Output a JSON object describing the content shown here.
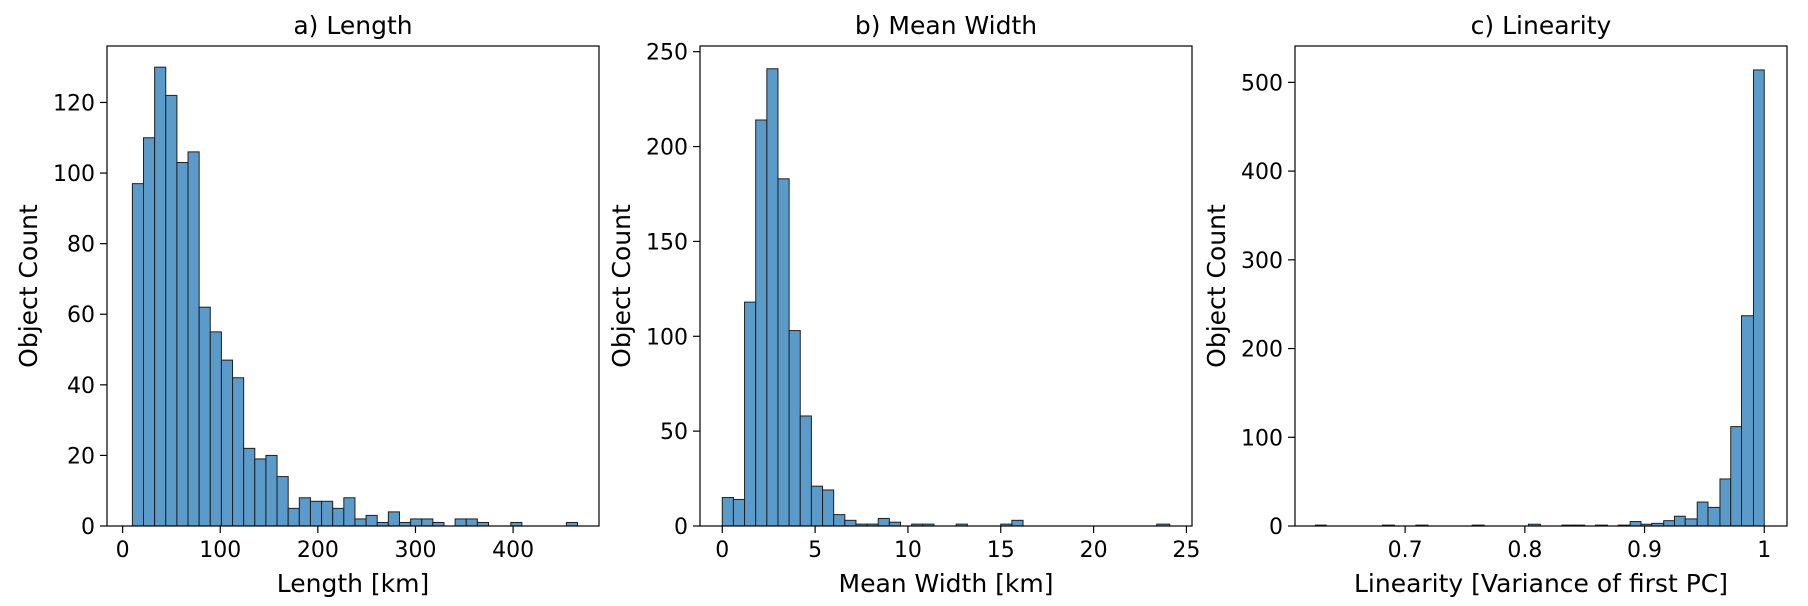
{
  "style": {
    "bar_color": "#5b9bc9",
    "edge_color": "#1f1f1f"
  },
  "chart_data": [
    {
      "type": "bar",
      "title": "a) Length",
      "xlabel": "Length [km]",
      "ylabel": "Object Count",
      "xlim": [
        -16,
        488
      ],
      "ylim": [
        0,
        136
      ],
      "xticks": [
        0,
        100,
        200,
        300,
        400
      ],
      "yticks": [
        0,
        20,
        40,
        60,
        80,
        100,
        120
      ],
      "bins": [
        [
          10,
          21.4,
          97
        ],
        [
          21.4,
          32.8,
          110
        ],
        [
          32.8,
          44.2,
          130
        ],
        [
          44.2,
          55.6,
          122
        ],
        [
          55.6,
          67,
          103
        ],
        [
          67,
          78.4,
          106
        ],
        [
          78.4,
          89.8,
          62
        ],
        [
          89.8,
          101.2,
          55
        ],
        [
          101.2,
          112.6,
          47
        ],
        [
          112.6,
          124,
          42
        ],
        [
          124,
          135.4,
          22
        ],
        [
          135.4,
          146.8,
          19
        ],
        [
          146.8,
          158.2,
          20
        ],
        [
          158.2,
          169.6,
          14
        ],
        [
          169.6,
          181,
          5
        ],
        [
          181,
          192.4,
          8
        ],
        [
          192.4,
          203.8,
          7
        ],
        [
          203.8,
          215.2,
          7
        ],
        [
          215.2,
          226.6,
          5
        ],
        [
          226.6,
          238,
          8
        ],
        [
          238,
          249.4,
          2
        ],
        [
          249.4,
          260.8,
          3
        ],
        [
          260.8,
          272.2,
          1
        ],
        [
          272.2,
          283.6,
          4
        ],
        [
          283.6,
          295,
          1
        ],
        [
          295,
          306.4,
          2
        ],
        [
          306.4,
          317.8,
          2
        ],
        [
          317.8,
          329.2,
          1
        ],
        [
          329.2,
          340.6,
          0
        ],
        [
          340.6,
          352,
          2
        ],
        [
          352,
          363.4,
          2
        ],
        [
          363.4,
          374.8,
          1
        ],
        [
          374.8,
          386.2,
          0
        ],
        [
          386.2,
          397.6,
          0
        ],
        [
          397.6,
          409,
          1
        ],
        [
          409,
          420.4,
          0
        ],
        [
          420.4,
          431.8,
          0
        ],
        [
          431.8,
          443.2,
          0
        ],
        [
          443.2,
          454.6,
          0
        ],
        [
          454.6,
          466,
          1
        ]
      ]
    },
    {
      "type": "bar",
      "title": "b) Mean Width",
      "xlabel": "Mean Width [km]",
      "ylabel": "Object Count",
      "xlim": [
        -1.2,
        25.3
      ],
      "ylim": [
        0,
        253
      ],
      "xticks": [
        0,
        5,
        10,
        15,
        20,
        25
      ],
      "yticks": [
        0,
        50,
        100,
        150,
        200,
        250
      ],
      "bins": [
        [
          0,
          0.6,
          15
        ],
        [
          0.6,
          1.2,
          14
        ],
        [
          1.2,
          1.8,
          118
        ],
        [
          1.8,
          2.4,
          214
        ],
        [
          2.4,
          3.0,
          241
        ],
        [
          3.0,
          3.6,
          183
        ],
        [
          3.6,
          4.2,
          103
        ],
        [
          4.2,
          4.8,
          58
        ],
        [
          4.8,
          5.4,
          21
        ],
        [
          5.4,
          6.0,
          19
        ],
        [
          6.0,
          6.6,
          6
        ],
        [
          6.6,
          7.2,
          3
        ],
        [
          7.2,
          7.8,
          1
        ],
        [
          7.8,
          8.4,
          1
        ],
        [
          8.4,
          9.0,
          4
        ],
        [
          9.0,
          9.6,
          2
        ],
        [
          9.6,
          10.2,
          0
        ],
        [
          10.2,
          10.8,
          1
        ],
        [
          10.8,
          11.4,
          1
        ],
        [
          11.4,
          12.0,
          0
        ],
        [
          12.0,
          12.6,
          0
        ],
        [
          12.6,
          13.2,
          1
        ],
        [
          13.2,
          13.8,
          0
        ],
        [
          13.8,
          14.4,
          0
        ],
        [
          14.4,
          15.0,
          0
        ],
        [
          15.0,
          15.6,
          1
        ],
        [
          15.6,
          16.2,
          3
        ],
        [
          16.2,
          16.8,
          0
        ],
        [
          16.8,
          17.4,
          0
        ],
        [
          17.4,
          18.0,
          0
        ],
        [
          18.0,
          18.6,
          0
        ],
        [
          18.6,
          19.2,
          0
        ],
        [
          19.2,
          19.8,
          0
        ],
        [
          19.8,
          20.4,
          0
        ],
        [
          20.4,
          21.0,
          0
        ],
        [
          21.0,
          21.6,
          0
        ],
        [
          21.6,
          22.2,
          0
        ],
        [
          22.2,
          22.8,
          0
        ],
        [
          22.8,
          23.4,
          0
        ],
        [
          23.4,
          24.1,
          1
        ]
      ]
    },
    {
      "type": "bar",
      "title": "c) Linearity",
      "xlabel": "Linearity [Variance of first PC]",
      "ylabel": "Object Count",
      "xlim": [
        0.608,
        1.019
      ],
      "ylim": [
        0,
        541
      ],
      "xticks": [
        0.7,
        0.8,
        0.9,
        1.0
      ],
      "yticks": [
        0,
        100,
        200,
        300,
        400,
        500
      ],
      "bins": [
        [
          0.625,
          0.634,
          1
        ],
        [
          0.634,
          0.644,
          0
        ],
        [
          0.644,
          0.653,
          0
        ],
        [
          0.653,
          0.663,
          0
        ],
        [
          0.663,
          0.672,
          0
        ],
        [
          0.672,
          0.681,
          0
        ],
        [
          0.681,
          0.691,
          1
        ],
        [
          0.691,
          0.7,
          0
        ],
        [
          0.7,
          0.709,
          0
        ],
        [
          0.709,
          0.719,
          1
        ],
        [
          0.719,
          0.728,
          0
        ],
        [
          0.728,
          0.738,
          0
        ],
        [
          0.738,
          0.747,
          0
        ],
        [
          0.747,
          0.756,
          0
        ],
        [
          0.756,
          0.766,
          1
        ],
        [
          0.766,
          0.775,
          0
        ],
        [
          0.775,
          0.784,
          0
        ],
        [
          0.784,
          0.794,
          0
        ],
        [
          0.794,
          0.803,
          0
        ],
        [
          0.803,
          0.813,
          2
        ],
        [
          0.813,
          0.822,
          0
        ],
        [
          0.822,
          0.831,
          0
        ],
        [
          0.831,
          0.841,
          1
        ],
        [
          0.841,
          0.85,
          1
        ],
        [
          0.85,
          0.859,
          0
        ],
        [
          0.859,
          0.869,
          1
        ],
        [
          0.869,
          0.878,
          0
        ],
        [
          0.878,
          0.888,
          1
        ],
        [
          0.888,
          0.897,
          5
        ],
        [
          0.897,
          0.906,
          2
        ],
        [
          0.906,
          0.916,
          3
        ],
        [
          0.916,
          0.925,
          6
        ],
        [
          0.925,
          0.934,
          11
        ],
        [
          0.934,
          0.944,
          8
        ],
        [
          0.944,
          0.953,
          27
        ],
        [
          0.953,
          0.963,
          21
        ],
        [
          0.963,
          0.972,
          53
        ],
        [
          0.972,
          0.981,
          112
        ],
        [
          0.981,
          0.991,
          237
        ],
        [
          0.991,
          1.0,
          514
        ]
      ]
    }
  ]
}
